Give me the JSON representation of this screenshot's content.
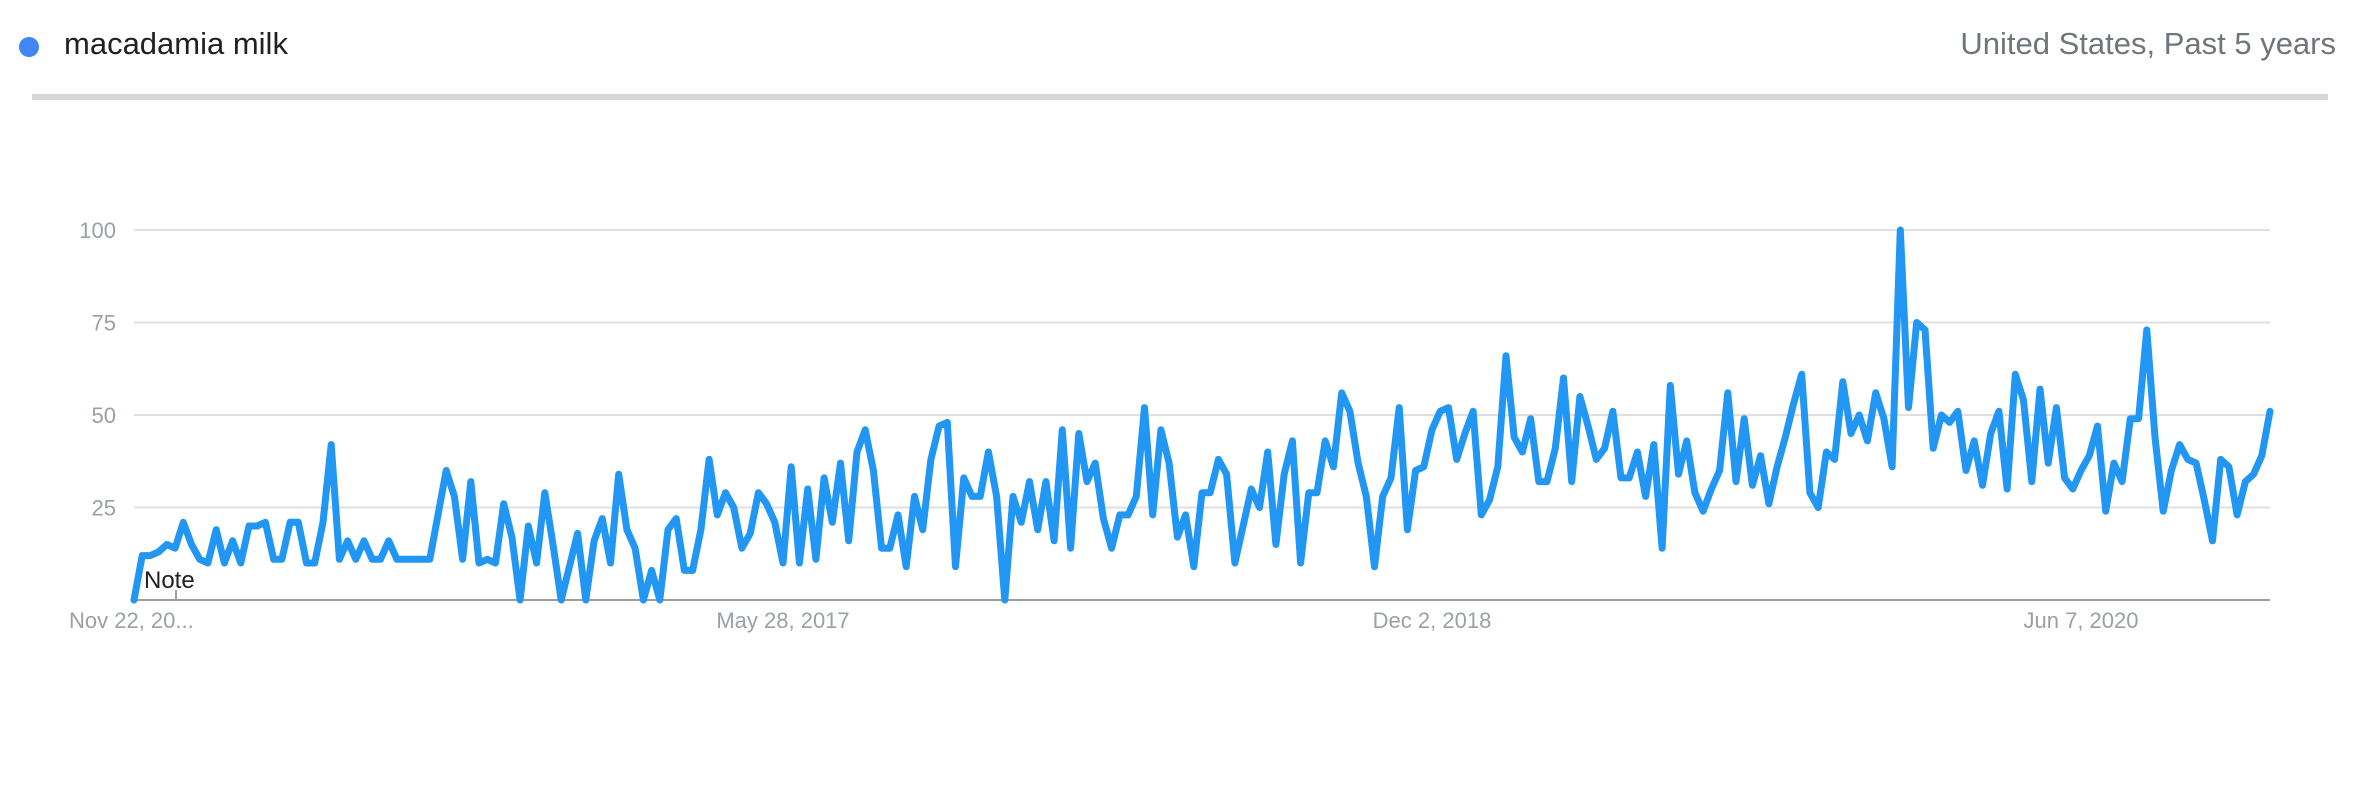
{
  "legend": {
    "term": "macadamia milk",
    "dot_color": "#4285f4"
  },
  "header": {
    "info": "United States, Past 5 years"
  },
  "chart_data": {
    "type": "line",
    "title": "",
    "xlabel": "",
    "ylabel": "",
    "ylim": [
      0,
      100
    ],
    "yticks": [
      25,
      50,
      75,
      100
    ],
    "xtick_labels": [
      "Nov 22, 20...",
      "May 28, 2017",
      "Dec 2, 2018",
      "Jun 7, 2020"
    ],
    "annotation": "Note",
    "grid": true,
    "line_color": "#2196f3",
    "series": [
      {
        "values": [
          0,
          12,
          12,
          13,
          15,
          14,
          21,
          15,
          11,
          10,
          19,
          10,
          16,
          10,
          20,
          20,
          21,
          11,
          11,
          21,
          21,
          10,
          10,
          21,
          42,
          11,
          16,
          11,
          16,
          11,
          11,
          16,
          11,
          11,
          11,
          11,
          11,
          23,
          35,
          28,
          11,
          32,
          10,
          11,
          10,
          26,
          17,
          0,
          20,
          10,
          29,
          15,
          0,
          9,
          18,
          0,
          16,
          22,
          10,
          34,
          19,
          14,
          0,
          8,
          0,
          19,
          22,
          8,
          8,
          19,
          38,
          23,
          29,
          25,
          14,
          18,
          29,
          26,
          21,
          10,
          36,
          10,
          30,
          11,
          33,
          21,
          37,
          16,
          40,
          46,
          35,
          14,
          14,
          23,
          9,
          28,
          19,
          38,
          47,
          48,
          9,
          33,
          28,
          28,
          40,
          28,
          0,
          28,
          21,
          32,
          19,
          32,
          16,
          46,
          14,
          45,
          32,
          37,
          22,
          14,
          23,
          23,
          28,
          52,
          23,
          46,
          37,
          17,
          23,
          9,
          29,
          29,
          38,
          34,
          10,
          20,
          30,
          25,
          40,
          15,
          34,
          43,
          10,
          29,
          29,
          43,
          36,
          56,
          51,
          37,
          28,
          9,
          28,
          33,
          52,
          19,
          35,
          36,
          46,
          51,
          52,
          38,
          45,
          51,
          23,
          27,
          36,
          66,
          44,
          40,
          49,
          32,
          32,
          41,
          60,
          32,
          55,
          47,
          38,
          41,
          51,
          33,
          33,
          40,
          28,
          42,
          14,
          58,
          34,
          43,
          29,
          24,
          30,
          35,
          56,
          32,
          49,
          31,
          39,
          26,
          36,
          44,
          53,
          61,
          29,
          25,
          40,
          38,
          59,
          45,
          50,
          43,
          56,
          49,
          36,
          100,
          52,
          75,
          73,
          41,
          50,
          48,
          51,
          35,
          43,
          31,
          45,
          51,
          30,
          61,
          54,
          32,
          57,
          37,
          52,
          33,
          30,
          35,
          39,
          47,
          24,
          37,
          32,
          49,
          49,
          73,
          44,
          24,
          35,
          42,
          38,
          37,
          27,
          16,
          38,
          36,
          23,
          32,
          34,
          39,
          51
        ]
      }
    ]
  }
}
